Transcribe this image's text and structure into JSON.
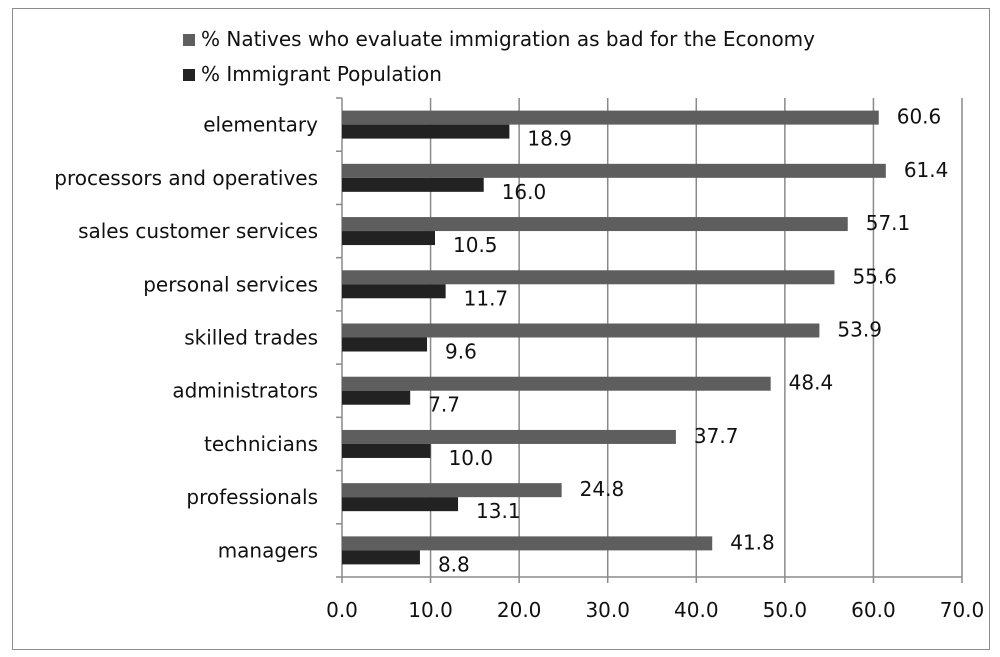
{
  "chart_data": {
    "type": "bar",
    "orientation": "horizontal",
    "categories": [
      "managers",
      "professionals",
      "technicians",
      "administrators",
      "skilled trades",
      "personal services",
      "sales customer services",
      "processors and operatives",
      "elementary"
    ],
    "series": [
      {
        "name": "% Natives who evaluate immigration as bad for the Economy",
        "color": "#5e5e5e",
        "values": [
          41.8,
          24.8,
          37.7,
          48.4,
          53.9,
          55.6,
          57.1,
          61.4,
          60.6
        ]
      },
      {
        "name": "% Immigrant Population",
        "color": "#222222",
        "values": [
          8.8,
          13.1,
          10.0,
          7.7,
          9.6,
          11.7,
          10.5,
          16.0,
          18.9
        ]
      }
    ],
    "value_labels": [
      [
        "41.8",
        "24.8",
        "37.7",
        "48.4",
        "53.9",
        "55.6",
        "57.1",
        "61.4",
        "60.6"
      ],
      [
        "8.8",
        "13.1",
        "10.0",
        "7.7",
        "9.6",
        "11.7",
        "10.5",
        "16.0",
        "18.9"
      ]
    ],
    "xlim": [
      0,
      70
    ],
    "xticks": [
      "0.0",
      "10.0",
      "20.0",
      "30.0",
      "40.0",
      "50.0",
      "60.0",
      "70.0"
    ],
    "grid": "vertical",
    "legend_position": "top",
    "title": "",
    "xlabel": "",
    "ylabel": ""
  }
}
